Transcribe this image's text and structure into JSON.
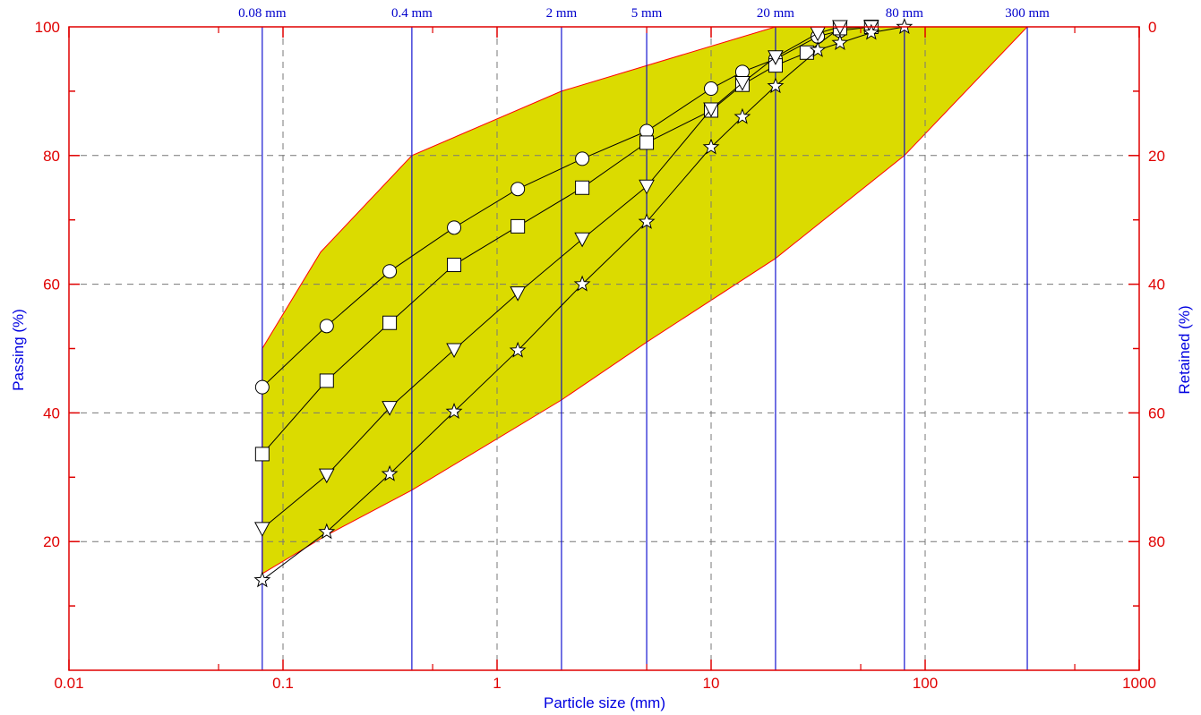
{
  "chart_data": {
    "type": "line",
    "x_scale": "log",
    "xlim": [
      0.01,
      1000
    ],
    "ylim": [
      0,
      100
    ],
    "xlabel": "Particle size (mm)",
    "ylabel_left": "Passing (%)",
    "ylabel_right": "Retained (%)",
    "x_tick_labels": [
      "0.01",
      "0.1",
      "1",
      "10",
      "100",
      "1000"
    ],
    "x_ticks": [
      0.01,
      0.1,
      1,
      10,
      100,
      1000
    ],
    "y_left_ticks": [
      20,
      40,
      60,
      80,
      100
    ],
    "y_left_tick_labels": [
      "20",
      "40",
      "60",
      "80",
      "100"
    ],
    "y_right_ticks": [
      0,
      20,
      40,
      60,
      80
    ],
    "y_right_tick_labels": [
      "0",
      "20",
      "40",
      "60",
      "80"
    ],
    "grid": true,
    "sieve_lines": [
      {
        "size": 0.08,
        "label": "0.08 mm"
      },
      {
        "size": 0.4,
        "label": "0.4 mm"
      },
      {
        "size": 2,
        "label": "2 mm"
      },
      {
        "size": 5,
        "label": "5 mm"
      },
      {
        "size": 20,
        "label": "20 mm"
      },
      {
        "size": 80,
        "label": "80 mm"
      },
      {
        "size": 300,
        "label": "300 mm"
      }
    ],
    "envelope": {
      "upper": [
        [
          0.08,
          50
        ],
        [
          0.15,
          65
        ],
        [
          0.4,
          80
        ],
        [
          2,
          90
        ],
        [
          20,
          100
        ],
        [
          300,
          100
        ]
      ],
      "lower": [
        [
          0.08,
          15
        ],
        [
          0.16,
          21
        ],
        [
          0.4,
          28
        ],
        [
          2,
          42
        ],
        [
          5,
          51
        ],
        [
          20,
          64
        ],
        [
          80,
          80
        ],
        [
          300,
          100
        ]
      ]
    },
    "series": [
      {
        "marker": "circle",
        "x": [
          0.08,
          0.16,
          0.315,
          0.63,
          1.25,
          2.5,
          5,
          10,
          14,
          20,
          31.5,
          40,
          56
        ],
        "y": [
          44,
          53.5,
          62,
          68.8,
          74.8,
          79.5,
          83.8,
          90.4,
          93,
          95,
          98.5,
          99.4,
          100
        ]
      },
      {
        "marker": "square",
        "x": [
          0.08,
          0.16,
          0.315,
          0.63,
          1.25,
          2.5,
          5,
          10,
          14,
          20,
          28,
          40,
          56
        ],
        "y": [
          33.6,
          45,
          54,
          63,
          69,
          75,
          82,
          87,
          91,
          94,
          96,
          99.8,
          100
        ]
      },
      {
        "marker": "triangle-down",
        "x": [
          0.08,
          0.16,
          0.315,
          0.63,
          1.25,
          2.5,
          5,
          10,
          14,
          20,
          31.5,
          40,
          56
        ],
        "y": [
          22,
          30.3,
          40.8,
          49.8,
          58.6,
          67,
          75.2,
          87.2,
          91.3,
          95.3,
          99,
          100,
          100
        ]
      },
      {
        "marker": "star",
        "x": [
          0.08,
          0.16,
          0.315,
          0.63,
          1.25,
          2.5,
          5,
          10,
          14,
          20,
          31.5,
          40,
          56,
          80
        ],
        "y": [
          14,
          21.5,
          30.5,
          40.2,
          49.7,
          60,
          69.7,
          81.3,
          86,
          90.8,
          96.4,
          97.5,
          99.1,
          100
        ]
      }
    ],
    "colors": {
      "frame": "#e00000",
      "envelope_fill": "#dbdb00",
      "envelope_edge": "#ff0000",
      "sieve_line": "#0000cc",
      "grid": "#777777",
      "axis_title": "#0000e0",
      "series_line": "#000000",
      "marker_fill": "#ffffff"
    }
  }
}
